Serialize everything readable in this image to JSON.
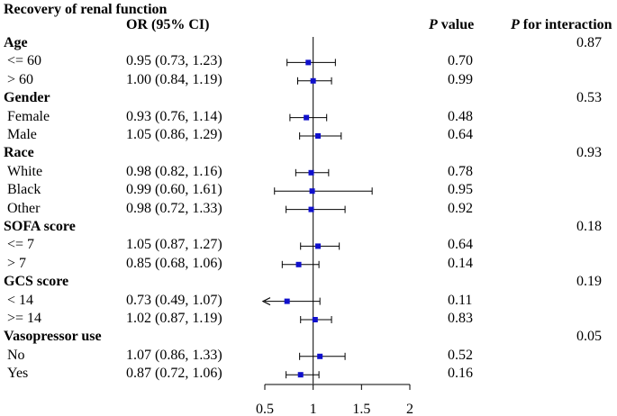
{
  "chart_data": {
    "type": "forest",
    "title": "Recovery of renal function",
    "columns": {
      "estimate": "OR (95% CI)",
      "p_value_prefix": "P",
      "p_value_suffix": " value",
      "p_interaction_prefix": "P",
      "p_interaction_suffix": " for interaction"
    },
    "xaxis": {
      "ticks": [
        0.5,
        1,
        1.5,
        2
      ],
      "tick_labels": [
        "0.5",
        "1",
        "1.5",
        "2"
      ],
      "range": [
        0.5,
        2
      ],
      "reference_line": 1
    },
    "rows": [
      {
        "type": "group",
        "label": "Age",
        "p_interaction": "0.87"
      },
      {
        "type": "item",
        "label": "<= 60",
        "or": 0.95,
        "lo": 0.73,
        "hi": 1.23,
        "ci_text": "0.95 (0.73, 1.23)",
        "p": "0.70"
      },
      {
        "type": "item",
        "label": "> 60",
        "or": 1.0,
        "lo": 0.84,
        "hi": 1.19,
        "ci_text": "1.00 (0.84, 1.19)",
        "p": "0.99"
      },
      {
        "type": "group",
        "label": "Gender",
        "p_interaction": "0.53"
      },
      {
        "type": "item",
        "label": "Female",
        "or": 0.93,
        "lo": 0.76,
        "hi": 1.14,
        "ci_text": "0.93 (0.76, 1.14)",
        "p": "0.48"
      },
      {
        "type": "item",
        "label": "Male",
        "or": 1.05,
        "lo": 0.86,
        "hi": 1.29,
        "ci_text": "1.05 (0.86, 1.29)",
        "p": "0.64"
      },
      {
        "type": "group",
        "label": "Race",
        "p_interaction": "0.93"
      },
      {
        "type": "item",
        "label": "White",
        "or": 0.98,
        "lo": 0.82,
        "hi": 1.16,
        "ci_text": "0.98 (0.82, 1.16)",
        "p": "0.78"
      },
      {
        "type": "item",
        "label": "Black",
        "or": 0.99,
        "lo": 0.6,
        "hi": 1.61,
        "ci_text": "0.99 (0.60, 1.61)",
        "p": "0.95"
      },
      {
        "type": "item",
        "label": "Other",
        "or": 0.98,
        "lo": 0.72,
        "hi": 1.33,
        "ci_text": "0.98 (0.72, 1.33)",
        "p": "0.92"
      },
      {
        "type": "group",
        "label": "SOFA score",
        "p_interaction": "0.18"
      },
      {
        "type": "item",
        "label": "<= 7",
        "or": 1.05,
        "lo": 0.87,
        "hi": 1.27,
        "ci_text": "1.05 (0.87, 1.27)",
        "p": "0.64"
      },
      {
        "type": "item",
        "label": "> 7",
        "or": 0.85,
        "lo": 0.68,
        "hi": 1.06,
        "ci_text": "0.85 (0.68, 1.06)",
        "p": "0.14"
      },
      {
        "type": "group",
        "label": "GCS score",
        "p_interaction": "0.19"
      },
      {
        "type": "item",
        "label": "< 14",
        "or": 0.73,
        "lo": 0.49,
        "hi": 1.07,
        "ci_text": "0.73 (0.49, 1.07)",
        "p": "0.11",
        "lower_arrow": true
      },
      {
        "type": "item",
        "label": ">= 14",
        "or": 1.02,
        "lo": 0.87,
        "hi": 1.19,
        "ci_text": "1.02 (0.87, 1.19)",
        "p": "0.83"
      },
      {
        "type": "group",
        "label": "Vasopressor use",
        "p_interaction": "0.05"
      },
      {
        "type": "item",
        "label": "No",
        "or": 1.07,
        "lo": 0.86,
        "hi": 1.33,
        "ci_text": "1.07 (0.86, 1.33)",
        "p": "0.52"
      },
      {
        "type": "item",
        "label": "Yes",
        "or": 0.87,
        "lo": 0.72,
        "hi": 1.06,
        "ci_text": "0.87 (0.72, 1.06)",
        "p": "0.16"
      }
    ],
    "colors": {
      "marker": "#1010cc",
      "line": "#000000",
      "text": "#000000"
    }
  }
}
